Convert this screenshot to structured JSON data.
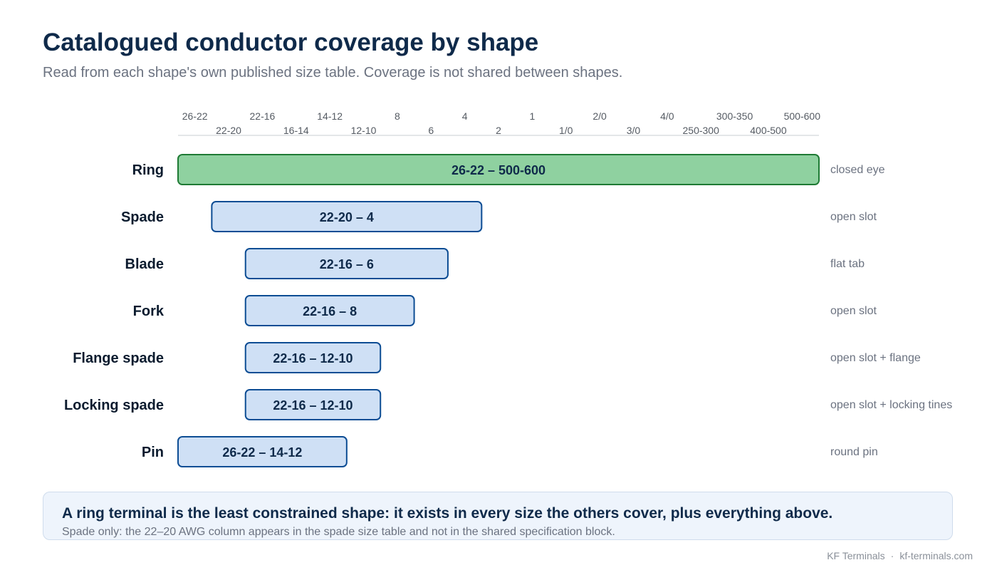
{
  "header": {
    "title": "Catalogued conductor coverage by shape",
    "subtitle": "Read from each shape's own published size table. Coverage is not shared between shapes."
  },
  "chart_data": {
    "type": "bar",
    "orientation": "horizontal-range",
    "size_axis": [
      "26-22",
      "22-20",
      "22-16",
      "16-14",
      "14-12",
      "12-10",
      "8",
      "6",
      "4",
      "2",
      "1",
      "1/0",
      "2/0",
      "3/0",
      "4/0",
      "250-300",
      "300-350",
      "400-500",
      "500-600"
    ],
    "series": [
      {
        "shape": "Ring",
        "from": "26-22",
        "to": "500-600",
        "range_label": "26-22 – 500-600",
        "note": "closed eye",
        "highlight": true
      },
      {
        "shape": "Spade",
        "from": "22-20",
        "to": "4",
        "range_label": "22-20 – 4",
        "note": "open slot",
        "highlight": false
      },
      {
        "shape": "Blade",
        "from": "22-16",
        "to": "6",
        "range_label": "22-16 – 6",
        "note": "flat tab",
        "highlight": false
      },
      {
        "shape": "Fork",
        "from": "22-16",
        "to": "8",
        "range_label": "22-16 – 8",
        "note": "open slot",
        "highlight": false
      },
      {
        "shape": "Flange spade",
        "from": "22-16",
        "to": "12-10",
        "range_label": "22-16 – 12-10",
        "note": "open slot + flange",
        "highlight": false
      },
      {
        "shape": "Locking spade",
        "from": "22-16",
        "to": "12-10",
        "range_label": "22-16 – 12-10",
        "note": "open slot + locking tines",
        "highlight": false
      },
      {
        "shape": "Pin",
        "from": "26-22",
        "to": "14-12",
        "range_label": "26-22 – 14-12",
        "note": "round pin",
        "highlight": false
      }
    ],
    "colors": {
      "highlight_fill": "#8fd1a0",
      "highlight_stroke": "#1e7a34",
      "bar_fill": "#cfe0f5",
      "bar_stroke": "#0d4d94",
      "tick_text": "#555b63",
      "note_text": "#6b7280",
      "axis_line": "#c8ccd2"
    }
  },
  "callout": {
    "headline": "A ring terminal is the least constrained shape: it exists in every size the others cover, plus everything above.",
    "note": "Spade only: the 22–20 AWG column appears in the spade size table and not in the shared specification block."
  },
  "footer": {
    "brand": "KF Terminals",
    "separator": "·",
    "site": "kf-terminals.com"
  }
}
